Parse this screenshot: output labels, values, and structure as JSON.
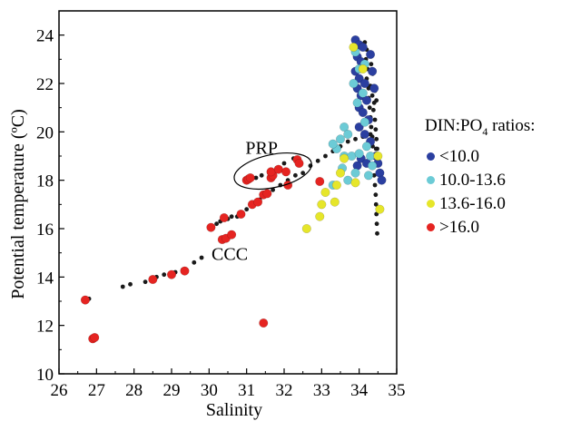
{
  "chart_data": {
    "type": "scatter",
    "xlabel": "Salinity",
    "ylabel": "Potential temperature (ºC)",
    "xlim": [
      26,
      35
    ],
    "ylim": [
      10,
      25
    ],
    "x_ticks": [
      "26",
      "27",
      "28",
      "29",
      "30",
      "31",
      "32",
      "33",
      "34",
      "35"
    ],
    "y_ticks": [
      "10",
      "12",
      "14",
      "16",
      "18",
      "20",
      "22",
      "24"
    ],
    "grid": false,
    "legend_placement": "right",
    "legend_title": "DIN:PO4 ratios:",
    "legend_title_main": "DIN:PO",
    "legend_title_sub": "4",
    "legend_title_tail": " ratios:",
    "annotations": [
      {
        "text": "PRP",
        "x": 31.4,
        "y": 19.1
      },
      {
        "text": "CCC",
        "x": 30.55,
        "y": 14.7
      }
    ],
    "prp_ellipse": {
      "cx": 31.7,
      "cy": 18.38,
      "rx": 1.05,
      "ry": 0.68
    },
    "series": [
      {
        "name": "background",
        "color": "#1a1a1a",
        "size": "small",
        "points": [
          [
            26.8,
            13.1
          ],
          [
            27.7,
            13.6
          ],
          [
            27.9,
            13.7
          ],
          [
            28.3,
            13.8
          ],
          [
            28.6,
            14.0
          ],
          [
            28.8,
            14.1
          ],
          [
            29.1,
            14.2
          ],
          [
            29.3,
            14.3
          ],
          [
            29.6,
            14.6
          ],
          [
            29.8,
            14.8
          ],
          [
            30.05,
            16.1
          ],
          [
            30.2,
            16.2
          ],
          [
            30.3,
            16.3
          ],
          [
            30.5,
            16.4
          ],
          [
            30.6,
            16.5
          ],
          [
            30.75,
            16.5
          ],
          [
            30.9,
            16.6
          ],
          [
            31.0,
            16.8
          ],
          [
            31.2,
            17.0
          ],
          [
            31.35,
            17.2
          ],
          [
            31.5,
            17.4
          ],
          [
            31.7,
            17.6
          ],
          [
            31.9,
            17.8
          ],
          [
            32.1,
            18.0
          ],
          [
            32.3,
            18.2
          ],
          [
            32.5,
            18.3
          ],
          [
            31.1,
            18.0
          ],
          [
            31.25,
            18.1
          ],
          [
            31.4,
            18.2
          ],
          [
            31.6,
            18.3
          ],
          [
            31.8,
            18.5
          ],
          [
            32.0,
            18.7
          ],
          [
            32.25,
            18.9
          ],
          [
            32.45,
            18.7
          ],
          [
            32.7,
            18.6
          ],
          [
            32.9,
            18.8
          ],
          [
            33.1,
            19.0
          ],
          [
            33.3,
            19.2
          ],
          [
            33.5,
            19.4
          ],
          [
            33.7,
            19.6
          ],
          [
            33.9,
            19.7
          ],
          [
            34.1,
            19.8
          ],
          [
            34.3,
            19.9
          ],
          [
            34.45,
            19.3
          ],
          [
            34.15,
            23.7
          ],
          [
            34.2,
            23.4
          ],
          [
            34.18,
            23.0
          ],
          [
            34.22,
            22.6
          ],
          [
            34.2,
            22.2
          ],
          [
            34.25,
            21.8
          ],
          [
            34.25,
            21.4
          ],
          [
            34.28,
            21.0
          ],
          [
            34.3,
            20.6
          ],
          [
            34.32,
            20.2
          ],
          [
            34.35,
            19.8
          ],
          [
            34.36,
            19.4
          ],
          [
            34.38,
            19.0
          ],
          [
            34.38,
            18.6
          ],
          [
            34.4,
            18.2
          ],
          [
            34.42,
            17.8
          ],
          [
            34.44,
            17.4
          ],
          [
            34.45,
            17.0
          ],
          [
            34.46,
            16.6
          ],
          [
            34.47,
            16.2
          ],
          [
            34.48,
            15.8
          ],
          [
            34.3,
            21.9
          ],
          [
            34.35,
            21.5
          ],
          [
            34.4,
            21.2
          ],
          [
            34.38,
            20.9
          ],
          [
            34.42,
            20.5
          ],
          [
            34.44,
            20.1
          ],
          [
            34.46,
            19.7
          ],
          [
            34.48,
            19.3
          ],
          [
            34.36,
            22.4
          ],
          [
            34.32,
            22.8
          ],
          [
            34.42,
            21.7
          ],
          [
            34.46,
            21.3
          ]
        ]
      },
      {
        "name": "<10.0",
        "color": "#2b3fa0",
        "size": "large",
        "points": [
          [
            33.9,
            23.8
          ],
          [
            34.0,
            23.6
          ],
          [
            34.1,
            23.5
          ],
          [
            33.95,
            23.1
          ],
          [
            34.05,
            22.9
          ],
          [
            33.9,
            22.5
          ],
          [
            34.0,
            22.2
          ],
          [
            34.15,
            22.0
          ],
          [
            33.95,
            21.8
          ],
          [
            34.05,
            21.5
          ],
          [
            34.2,
            21.3
          ],
          [
            34.0,
            21.0
          ],
          [
            34.1,
            20.8
          ],
          [
            34.25,
            20.5
          ],
          [
            34.0,
            20.2
          ],
          [
            34.15,
            19.9
          ],
          [
            34.3,
            19.6
          ],
          [
            34.45,
            19.0
          ],
          [
            34.5,
            18.7
          ],
          [
            34.55,
            18.3
          ],
          [
            34.6,
            18.0
          ],
          [
            33.95,
            18.6
          ],
          [
            34.05,
            18.9
          ],
          [
            34.2,
            18.7
          ],
          [
            34.3,
            23.2
          ],
          [
            34.35,
            22.5
          ],
          [
            34.4,
            21.8
          ]
        ]
      },
      {
        "name": "10.0-13.6",
        "color": "#6ccbd6",
        "size": "large",
        "points": [
          [
            33.9,
            23.3
          ],
          [
            34.0,
            22.6
          ],
          [
            34.15,
            22.8
          ],
          [
            33.85,
            22.0
          ],
          [
            34.1,
            21.6
          ],
          [
            33.95,
            21.2
          ],
          [
            33.6,
            20.2
          ],
          [
            33.7,
            19.9
          ],
          [
            33.5,
            19.7
          ],
          [
            33.4,
            19.3
          ],
          [
            33.3,
            19.5
          ],
          [
            33.6,
            19.0
          ],
          [
            33.8,
            19.0
          ],
          [
            34.0,
            19.1
          ],
          [
            34.2,
            19.4
          ],
          [
            34.3,
            19.0
          ],
          [
            34.35,
            18.6
          ],
          [
            33.9,
            18.3
          ],
          [
            33.7,
            18.0
          ],
          [
            33.3,
            17.8
          ],
          [
            33.55,
            18.5
          ],
          [
            34.15,
            20.4
          ],
          [
            34.25,
            18.2
          ]
        ]
      },
      {
        "name": "13.6-16.0",
        "color": "#e6e62a",
        "size": "large",
        "points": [
          [
            33.85,
            23.5
          ],
          [
            34.1,
            22.6
          ],
          [
            33.6,
            18.9
          ],
          [
            33.5,
            18.3
          ],
          [
            33.4,
            17.8
          ],
          [
            33.1,
            17.5
          ],
          [
            33.0,
            17.0
          ],
          [
            33.35,
            17.1
          ],
          [
            32.95,
            16.5
          ],
          [
            32.6,
            16.0
          ],
          [
            34.5,
            19.0
          ],
          [
            34.55,
            16.8
          ],
          [
            33.9,
            17.9
          ]
        ]
      },
      {
        "name": ">16.0",
        "color": "#e52421",
        "size": "large",
        "points": [
          [
            26.7,
            13.05
          ],
          [
            26.9,
            11.45
          ],
          [
            26.95,
            11.5
          ],
          [
            28.5,
            13.9
          ],
          [
            29.0,
            14.1
          ],
          [
            29.35,
            14.25
          ],
          [
            30.05,
            16.05
          ],
          [
            30.4,
            16.45
          ],
          [
            30.35,
            15.55
          ],
          [
            30.45,
            15.6
          ],
          [
            30.6,
            15.75
          ],
          [
            30.85,
            16.6
          ],
          [
            31.15,
            17.0
          ],
          [
            31.3,
            17.1
          ],
          [
            31.45,
            17.4
          ],
          [
            31.0,
            18.0
          ],
          [
            31.05,
            18.05
          ],
          [
            31.1,
            18.1
          ],
          [
            31.65,
            18.1
          ],
          [
            31.7,
            18.2
          ],
          [
            31.65,
            18.35
          ],
          [
            31.85,
            18.45
          ],
          [
            32.05,
            18.35
          ],
          [
            32.35,
            18.85
          ],
          [
            32.4,
            18.7
          ],
          [
            32.1,
            17.8
          ],
          [
            31.55,
            17.45
          ],
          [
            31.45,
            12.1
          ],
          [
            32.95,
            17.95
          ]
        ]
      }
    ]
  }
}
